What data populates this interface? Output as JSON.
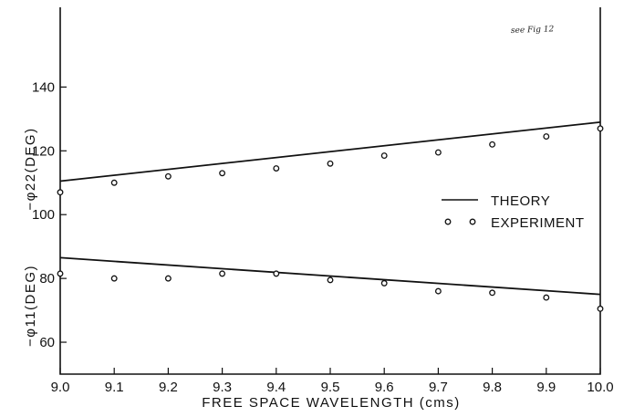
{
  "chart_data": {
    "type": "line",
    "xlabel": "FREE SPACE WAVELENGTH (cms)",
    "ylabel_upper": "−φ22(DEG)",
    "ylabel_lower": "−φ11(DEG)",
    "xlim": [
      9.0,
      10.0
    ],
    "ylim": [
      50,
      165
    ],
    "x_ticks": [
      9.0,
      9.1,
      9.2,
      9.3,
      9.4,
      9.5,
      9.6,
      9.7,
      9.8,
      9.9,
      10.0
    ],
    "x_tick_labels": [
      "9.0",
      "9.1",
      "9.2",
      "9.3",
      "9.4",
      "9.5",
      "9.6",
      "9.7",
      "9.8",
      "9.9",
      "10.0"
    ],
    "y_ticks": [
      60,
      80,
      100,
      120,
      140
    ],
    "y_tick_labels": [
      "60",
      "80",
      "100",
      "120",
      "140"
    ],
    "legend": {
      "position": "right",
      "entries": [
        {
          "label": "THEORY",
          "marker": "line"
        },
        {
          "label": "EXPERIMENT",
          "marker": "circle"
        }
      ]
    },
    "annotation": "see Fig 12",
    "series": [
      {
        "name": "THEORY",
        "group": "phi22",
        "style": "line",
        "x": [
          9.0,
          10.0
        ],
        "values": [
          110.5,
          129
        ]
      },
      {
        "name": "EXPERIMENT",
        "group": "phi22",
        "style": "scatter",
        "x": [
          9.0,
          9.1,
          9.2,
          9.3,
          9.4,
          9.5,
          9.6,
          9.7,
          9.8,
          9.9,
          10.0
        ],
        "values": [
          107,
          110,
          112,
          113,
          114.5,
          116,
          118.5,
          119.5,
          122,
          124.5,
          127
        ]
      },
      {
        "name": "THEORY",
        "group": "phi11",
        "style": "line",
        "x": [
          9.0,
          10.0
        ],
        "values": [
          86.5,
          75
        ]
      },
      {
        "name": "EXPERIMENT",
        "group": "phi11",
        "style": "scatter",
        "x": [
          9.0,
          9.1,
          9.2,
          9.3,
          9.4,
          9.5,
          9.6,
          9.7,
          9.8,
          9.9,
          10.0
        ],
        "values": [
          81.5,
          80,
          80,
          81.5,
          81.5,
          79.5,
          78.5,
          76,
          75.5,
          74,
          70.5
        ]
      }
    ]
  }
}
